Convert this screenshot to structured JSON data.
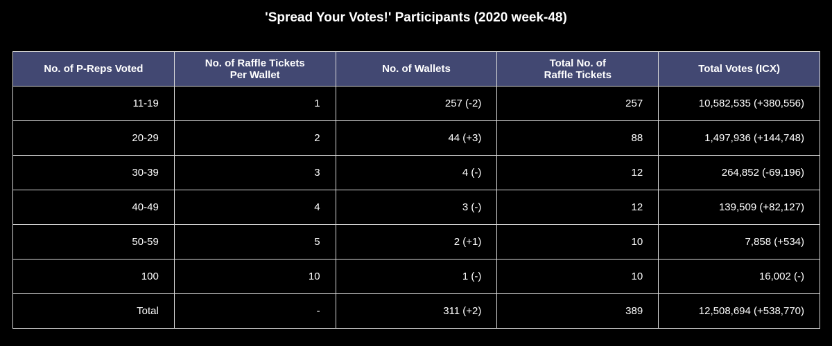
{
  "chart_data": {
    "type": "table",
    "title": "'Spread Your Votes!' Participants (2020 week-48)",
    "columns": [
      "No. of P-Reps Voted",
      "No. of Raffle Tickets\nPer Wallet",
      "No. of Wallets",
      "Total No. of\nRaffle Tickets",
      "Total Votes (ICX)"
    ],
    "rows": [
      [
        "11-19",
        "1",
        "257 (-2)",
        "257",
        "10,582,535 (+380,556)"
      ],
      [
        "20-29",
        "2",
        "44 (+3)",
        "88",
        "1,497,936 (+144,748)"
      ],
      [
        "30-39",
        "3",
        "4 (-)",
        "12",
        "264,852 (-69,196)"
      ],
      [
        "40-49",
        "4",
        "3 (-)",
        "12",
        "139,509 (+82,127)"
      ],
      [
        "50-59",
        "5",
        "2 (+1)",
        "10",
        "7,858 (+534)"
      ],
      [
        "100",
        "10",
        "1 (-)",
        "10",
        "16,002 (-)"
      ],
      [
        "Total",
        "-",
        "311 (+2)",
        "389",
        "12,508,694 (+538,770)"
      ]
    ],
    "header_color": "#424872",
    "background_color": "#000000",
    "text_color": "#ffffff",
    "border_color": "#dcdcdc"
  }
}
